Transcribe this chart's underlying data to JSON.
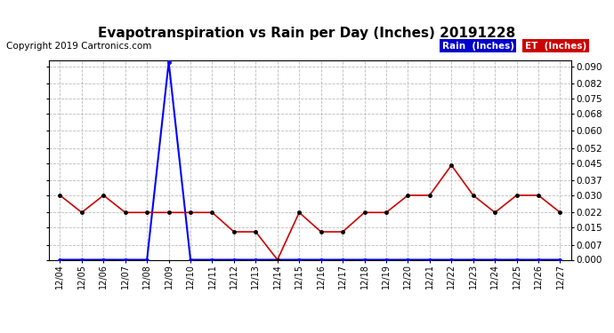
{
  "title": "Evapotranspiration vs Rain per Day (Inches) 20191228",
  "copyright": "Copyright 2019 Cartronics.com",
  "x_labels": [
    "12/04",
    "12/05",
    "12/06",
    "12/07",
    "12/08",
    "12/09",
    "12/10",
    "12/11",
    "12/12",
    "12/13",
    "12/14",
    "12/15",
    "12/16",
    "12/17",
    "12/18",
    "12/19",
    "12/20",
    "12/21",
    "12/22",
    "12/23",
    "12/24",
    "12/25",
    "12/26",
    "12/27"
  ],
  "rain_values": [
    0.0,
    0.0,
    0.0,
    0.0,
    0.0,
    0.092,
    0.0,
    0.0,
    0.0,
    0.0,
    0.0,
    0.0,
    0.0,
    0.0,
    0.0,
    0.0,
    0.0,
    0.0,
    0.0,
    0.0,
    0.0,
    0.0,
    0.0,
    0.0
  ],
  "et_values": [
    0.03,
    0.022,
    0.03,
    0.022,
    0.022,
    0.022,
    0.022,
    0.022,
    0.013,
    0.013,
    0.0,
    0.022,
    0.013,
    0.013,
    0.022,
    0.022,
    0.03,
    0.03,
    0.044,
    0.03,
    0.022,
    0.03,
    0.03,
    0.022
  ],
  "ylim": [
    0.0,
    0.093
  ],
  "yticks": [
    0.0,
    0.007,
    0.015,
    0.022,
    0.03,
    0.037,
    0.045,
    0.052,
    0.06,
    0.068,
    0.075,
    0.082,
    0.09
  ],
  "rain_color": "#0000ff",
  "et_color": "#cc0000",
  "rain_label": "Rain  (Inches)",
  "et_label": "ET  (Inches)",
  "background_color": "#ffffff",
  "grid_color": "#bbbbbb",
  "title_fontsize": 11,
  "copyright_fontsize": 7.5,
  "legend_rain_bg": "#0000cc",
  "legend_et_bg": "#cc0000"
}
